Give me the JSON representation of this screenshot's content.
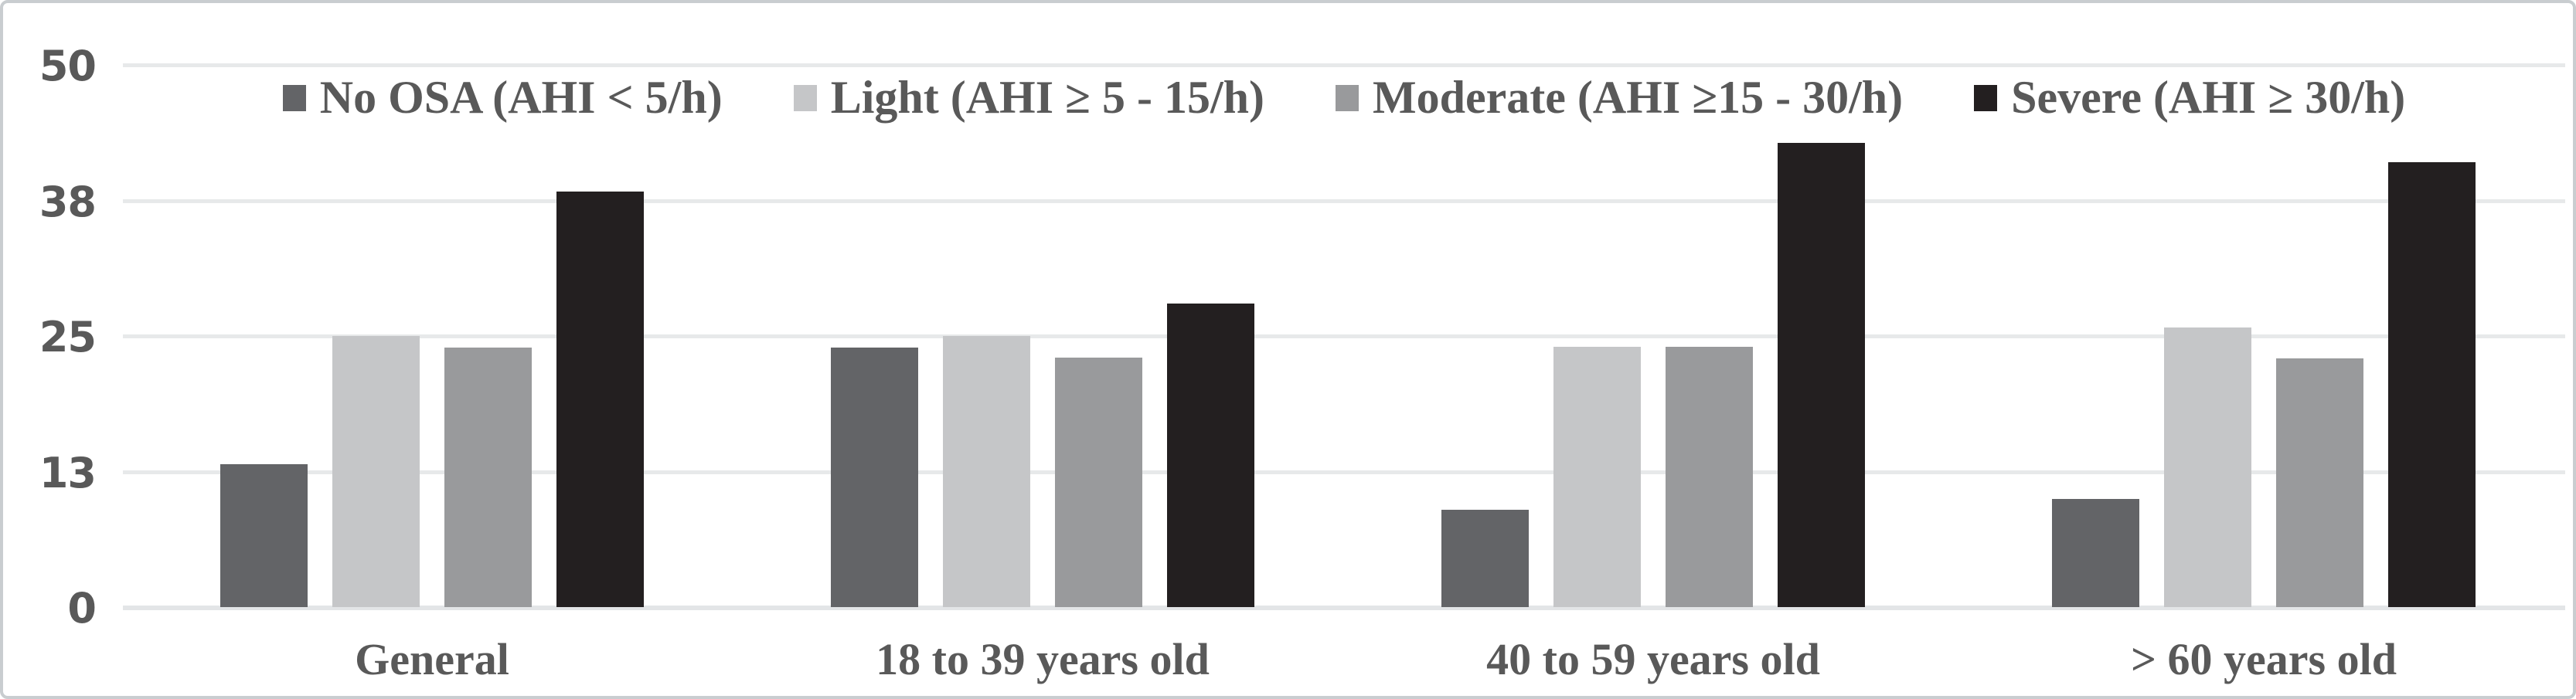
{
  "chart_data": {
    "type": "bar",
    "title": "",
    "legend_position": "top",
    "grid": true,
    "ylim": [
      0,
      50
    ],
    "y_ticks": [
      {
        "label": "0",
        "value": 0
      },
      {
        "label": "13",
        "value": 12.5
      },
      {
        "label": "25",
        "value": 25
      },
      {
        "label": "38",
        "value": 37.5
      },
      {
        "label": "50",
        "value": 50
      }
    ],
    "categories": [
      "General",
      "18 to 39 years old",
      "40 to 59 years old",
      "> 60 years old"
    ],
    "series": [
      {
        "name": "No OSA (AHI < 5/h)",
        "color": "#636467",
        "values": [
          13.2,
          23.9,
          9.0,
          10.0
        ]
      },
      {
        "name": "Light (AHI ≥ 5 - 15/h)",
        "color": "#c5c6c8",
        "values": [
          25.0,
          25.0,
          24.0,
          25.8
        ]
      },
      {
        "name": "Moderate (AHI ≥15 - 30/h)",
        "color": "#999a9c",
        "values": [
          23.9,
          23.0,
          24.0,
          22.9
        ]
      },
      {
        "name": "Severe (AHI ≥ 30/h)",
        "color": "#231f20",
        "values": [
          38.3,
          28.0,
          42.8,
          41.0
        ]
      }
    ],
    "colors": {
      "text": "#595959",
      "gridline": "#e7e9ea",
      "axis_line": "#e3e5e7",
      "frame_border": "#c9cdd0",
      "background": "#ffffff"
    }
  }
}
